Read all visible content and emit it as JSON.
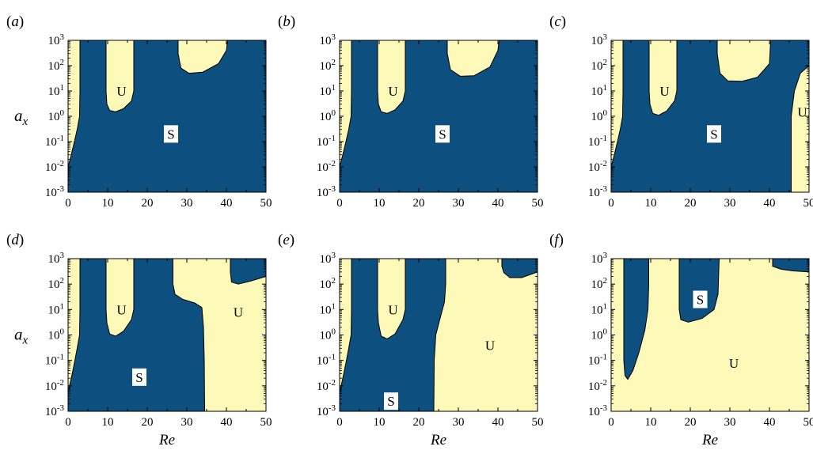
{
  "figure": {
    "colors": {
      "stable": "#0d5080",
      "unstable": "#fdf9b8",
      "boundary": "#000000",
      "label_box": "#ffffff"
    }
  },
  "chart_data": [
    {
      "type": "heatmap",
      "panel_label": "(a)",
      "xlabel": "",
      "ylabel": "a_x",
      "xlim": [
        0,
        50
      ],
      "ylim": [
        0.001,
        1000
      ],
      "yscale": "log",
      "xticks": [
        "0",
        "10",
        "20",
        "30",
        "40",
        "50"
      ],
      "yticks": [
        "10^-3",
        "10^-2",
        "10^-1",
        "10^0",
        "10^1",
        "10^2",
        "10^3"
      ],
      "background_region": "stable",
      "regions": [
        {
          "state": "unstable",
          "label": "",
          "polygon": [
            [
              0,
              0.01
            ],
            [
              0.8,
              0.03
            ],
            [
              1.6,
              0.1
            ],
            [
              2.3,
              0.3
            ],
            [
              2.9,
              1
            ],
            [
              3.0,
              10
            ],
            [
              3.0,
              100
            ],
            [
              3.0,
              1000
            ],
            [
              0,
              1000
            ]
          ]
        },
        {
          "state": "unstable",
          "label": "U",
          "label_at": [
            13.5,
            10
          ],
          "polygon": [
            [
              9.6,
              1000
            ],
            [
              9.6,
              10
            ],
            [
              9.8,
              3
            ],
            [
              10.5,
              1.7
            ],
            [
              12,
              1.5
            ],
            [
              14,
              2
            ],
            [
              16,
              4
            ],
            [
              16.6,
              10
            ],
            [
              16.6,
              100
            ],
            [
              16.6,
              1000
            ]
          ]
        },
        {
          "state": "unstable",
          "label": "",
          "polygon": [
            [
              27.8,
              1000
            ],
            [
              27.8,
              300
            ],
            [
              28.5,
              80
            ],
            [
              30.5,
              50
            ],
            [
              34,
              55
            ],
            [
              38,
              120
            ],
            [
              40,
              400
            ],
            [
              40.3,
              1000
            ]
          ]
        },
        {
          "state": "stable",
          "label": "S",
          "label_at": [
            26,
            0.2
          ],
          "polygon": []
        }
      ]
    },
    {
      "type": "heatmap",
      "panel_label": "(b)",
      "xlabel": "",
      "ylabel": "",
      "xlim": [
        0,
        50
      ],
      "ylim": [
        0.001,
        1000
      ],
      "yscale": "log",
      "xticks": [
        "0",
        "10",
        "20",
        "30",
        "40",
        "50"
      ],
      "yticks": [
        "10^-3",
        "10^-2",
        "10^-1",
        "10^0",
        "10^1",
        "10^2",
        "10^3"
      ],
      "background_region": "stable",
      "regions": [
        {
          "state": "unstable",
          "label": "",
          "polygon": [
            [
              0,
              0.01
            ],
            [
              0.8,
              0.03
            ],
            [
              1.6,
              0.1
            ],
            [
              2.3,
              0.3
            ],
            [
              2.9,
              1
            ],
            [
              3.0,
              10
            ],
            [
              3.0,
              100
            ],
            [
              3.0,
              1000
            ],
            [
              0,
              1000
            ]
          ]
        },
        {
          "state": "unstable",
          "label": "U",
          "label_at": [
            13.5,
            10
          ],
          "polygon": [
            [
              9.6,
              1000
            ],
            [
              9.6,
              10
            ],
            [
              9.8,
              3
            ],
            [
              10.5,
              1.5
            ],
            [
              12,
              1.3
            ],
            [
              14,
              1.8
            ],
            [
              16,
              4
            ],
            [
              16.6,
              10
            ],
            [
              16.6,
              100
            ],
            [
              16.6,
              1000
            ]
          ]
        },
        {
          "state": "unstable",
          "label": "",
          "polygon": [
            [
              27.2,
              1000
            ],
            [
              27.2,
              300
            ],
            [
              28,
              70
            ],
            [
              30.5,
              38
            ],
            [
              34,
              40
            ],
            [
              38,
              90
            ],
            [
              40,
              400
            ],
            [
              40.3,
              1000
            ]
          ]
        },
        {
          "state": "stable",
          "label": "S",
          "label_at": [
            26,
            0.2
          ],
          "polygon": []
        }
      ]
    },
    {
      "type": "heatmap",
      "panel_label": "(c)",
      "xlabel": "",
      "ylabel": "",
      "xlim": [
        0,
        50
      ],
      "ylim": [
        0.001,
        1000
      ],
      "yscale": "log",
      "xticks": [
        "0",
        "10",
        "20",
        "30",
        "40",
        "50"
      ],
      "yticks": [
        "10^-3",
        "10^-2",
        "10^-1",
        "10^0",
        "10^1",
        "10^2",
        "10^3"
      ],
      "background_region": "stable",
      "regions": [
        {
          "state": "unstable",
          "label": "",
          "polygon": [
            [
              0,
              0.01
            ],
            [
              0.8,
              0.03
            ],
            [
              1.6,
              0.1
            ],
            [
              2.3,
              0.3
            ],
            [
              2.9,
              1
            ],
            [
              3.0,
              10
            ],
            [
              3.0,
              100
            ],
            [
              3.0,
              1000
            ],
            [
              0,
              1000
            ]
          ]
        },
        {
          "state": "unstable",
          "label": "U",
          "label_at": [
            13.5,
            10
          ],
          "polygon": [
            [
              9.6,
              1000
            ],
            [
              9.6,
              10
            ],
            [
              9.8,
              3
            ],
            [
              10.5,
              1.3
            ],
            [
              12,
              1.1
            ],
            [
              14,
              1.6
            ],
            [
              16,
              4
            ],
            [
              16.6,
              10
            ],
            [
              16.6,
              100
            ],
            [
              16.6,
              1000
            ]
          ]
        },
        {
          "state": "unstable",
          "label": "",
          "polygon": [
            [
              26.8,
              1000
            ],
            [
              26.8,
              300
            ],
            [
              27.5,
              50
            ],
            [
              29.5,
              25
            ],
            [
              33,
              24
            ],
            [
              37,
              35
            ],
            [
              40,
              120
            ],
            [
              40.3,
              1000
            ]
          ]
        },
        {
          "state": "unstable",
          "label": "U",
          "label_at": [
            48.3,
            1.5
          ],
          "polygon": [
            [
              45.5,
              0.001
            ],
            [
              45.5,
              1
            ],
            [
              46.3,
              10
            ],
            [
              47.8,
              50
            ],
            [
              50,
              100
            ],
            [
              50,
              0.001
            ]
          ]
        },
        {
          "state": "stable",
          "label": "S",
          "label_at": [
            26,
            0.2
          ],
          "polygon": []
        }
      ]
    },
    {
      "type": "heatmap",
      "panel_label": "(d)",
      "xlabel": "Re",
      "ylabel": "a_x",
      "xlim": [
        0,
        50
      ],
      "ylim": [
        0.001,
        1000
      ],
      "yscale": "log",
      "xticks": [
        "0",
        "10",
        "20",
        "30",
        "40",
        "50"
      ],
      "yticks": [
        "10^-3",
        "10^-2",
        "10^-1",
        "10^0",
        "10^1",
        "10^2",
        "10^3"
      ],
      "background_region": "stable",
      "regions": [
        {
          "state": "unstable",
          "label": "",
          "polygon": [
            [
              0,
              0.006
            ],
            [
              0.8,
              0.02
            ],
            [
              1.6,
              0.08
            ],
            [
              2.3,
              0.3
            ],
            [
              2.9,
              1
            ],
            [
              3.0,
              10
            ],
            [
              3.0,
              100
            ],
            [
              3.0,
              1000
            ],
            [
              0,
              1000
            ]
          ]
        },
        {
          "state": "unstable",
          "label": "U",
          "label_at": [
            13.5,
            10
          ],
          "polygon": [
            [
              9.6,
              1000
            ],
            [
              9.6,
              10
            ],
            [
              9.8,
              3
            ],
            [
              10.5,
              1.1
            ],
            [
              12,
              0.9
            ],
            [
              14,
              1.4
            ],
            [
              16,
              4
            ],
            [
              16.6,
              10
            ],
            [
              16.6,
              100
            ],
            [
              16.6,
              1000
            ]
          ]
        },
        {
          "state": "unstable",
          "label": "U",
          "label_at": [
            43,
            8
          ],
          "polygon": [
            [
              26.5,
              1000
            ],
            [
              26.5,
              100
            ],
            [
              27,
              40
            ],
            [
              29,
              25
            ],
            [
              32,
              18
            ],
            [
              33.8,
              12
            ],
            [
              34.2,
              2
            ],
            [
              34.4,
              0.1
            ],
            [
              34.5,
              0.001
            ],
            [
              50,
              0.001
            ],
            [
              50,
              200
            ],
            [
              46,
              130
            ],
            [
              43,
              100
            ],
            [
              41.3,
              120
            ],
            [
              41,
              300
            ],
            [
              41,
              1000
            ]
          ]
        },
        {
          "state": "stable",
          "label": "S",
          "label_at": [
            18,
            0.022
          ],
          "polygon": []
        }
      ]
    },
    {
      "type": "heatmap",
      "panel_label": "(e)",
      "xlabel": "Re",
      "ylabel": "",
      "xlim": [
        0,
        50
      ],
      "ylim": [
        0.001,
        1000
      ],
      "yscale": "log",
      "xticks": [
        "0",
        "10",
        "20",
        "30",
        "40",
        "50"
      ],
      "yticks": [
        "10^-3",
        "10^-2",
        "10^-1",
        "10^0",
        "10^1",
        "10^2",
        "10^3"
      ],
      "background_region": "stable",
      "regions": [
        {
          "state": "unstable",
          "label": "",
          "polygon": [
            [
              0,
              0.005
            ],
            [
              0.8,
              0.02
            ],
            [
              1.6,
              0.08
            ],
            [
              2.3,
              0.3
            ],
            [
              2.9,
              1
            ],
            [
              3.0,
              10
            ],
            [
              3.0,
              100
            ],
            [
              3.0,
              1000
            ],
            [
              0,
              1000
            ]
          ]
        },
        {
          "state": "unstable",
          "label": "U",
          "label_at": [
            13.5,
            10
          ],
          "polygon": [
            [
              9.6,
              1000
            ],
            [
              9.6,
              10
            ],
            [
              9.8,
              3
            ],
            [
              10.5,
              0.9
            ],
            [
              12,
              0.7
            ],
            [
              14,
              1.1
            ],
            [
              16,
              4
            ],
            [
              16.6,
              10
            ],
            [
              16.6,
              100
            ],
            [
              16.6,
              1000
            ]
          ]
        },
        {
          "state": "unstable",
          "label": "U",
          "label_at": [
            38,
            0.4
          ],
          "polygon": [
            [
              26.8,
              1000
            ],
            [
              26.8,
              100
            ],
            [
              26.5,
              20
            ],
            [
              25.3,
              4
            ],
            [
              24.3,
              1
            ],
            [
              23.9,
              0.1
            ],
            [
              23.8,
              0.001
            ],
            [
              50,
              0.001
            ],
            [
              50,
              300
            ],
            [
              46,
              180
            ],
            [
              43,
              180
            ],
            [
              41.5,
              280
            ],
            [
              41,
              500
            ],
            [
              41,
              1000
            ]
          ]
        },
        {
          "state": "stable",
          "label": "S",
          "label_at": [
            13,
            0.0025
          ],
          "polygon": []
        }
      ]
    },
    {
      "type": "heatmap",
      "panel_label": "(f)",
      "xlabel": "Re",
      "ylabel": "",
      "xlim": [
        0,
        50
      ],
      "ylim": [
        0.001,
        1000
      ],
      "yscale": "log",
      "xticks": [
        "0",
        "10",
        "20",
        "30",
        "40",
        "50"
      ],
      "yticks": [
        "10^-3",
        "10^-2",
        "10^-1",
        "10^0",
        "10^1",
        "10^2",
        "10^3"
      ],
      "background_region": "unstable",
      "regions": [
        {
          "state": "stable",
          "label": "",
          "polygon": [
            [
              3.2,
              1000
            ],
            [
              3.2,
              0.1
            ],
            [
              3.5,
              0.025
            ],
            [
              4.2,
              0.018
            ],
            [
              5.5,
              0.04
            ],
            [
              7,
              0.2
            ],
            [
              8.5,
              1.5
            ],
            [
              9.3,
              10
            ],
            [
              9.5,
              100
            ],
            [
              9.5,
              1000
            ]
          ]
        },
        {
          "state": "stable",
          "label": "S",
          "label_at": [
            22.5,
            25
          ],
          "polygon": [
            [
              17.2,
              1000
            ],
            [
              17.2,
              10
            ],
            [
              17.6,
              4
            ],
            [
              19.5,
              3.2
            ],
            [
              23,
              4.5
            ],
            [
              26,
              10
            ],
            [
              27,
              40
            ],
            [
              27.3,
              1000
            ]
          ]
        },
        {
          "state": "stable",
          "label": "",
          "polygon": [
            [
              40.8,
              1000
            ],
            [
              40.8,
              500
            ],
            [
              43,
              380
            ],
            [
              46,
              330
            ],
            [
              50,
              300
            ],
            [
              50,
              1000
            ]
          ]
        },
        {
          "state": "unstable",
          "label": "U",
          "label_at": [
            31,
            0.08
          ],
          "polygon": []
        }
      ]
    }
  ]
}
